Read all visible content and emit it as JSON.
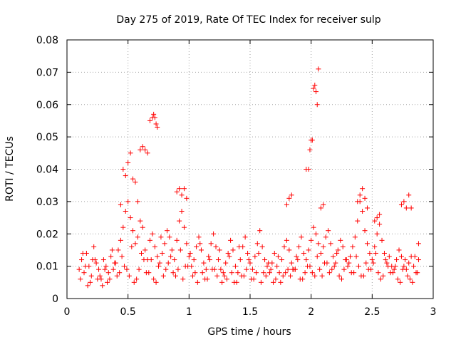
{
  "chart_data": {
    "type": "scatter",
    "title": "Day 275 of 2019, Rate Of TEC Index for receiver sulp",
    "xlabel": "GPS time / hours",
    "ylabel": "ROTI / TECUs",
    "xlim": [
      0,
      3
    ],
    "ylim": [
      0,
      0.08
    ],
    "x_ticks": [
      0,
      0.5,
      1,
      1.5,
      2,
      2.5,
      3
    ],
    "x_tick_labels": [
      "0",
      "0.5",
      "1",
      "1.5",
      "2",
      "2.5",
      "3"
    ],
    "y_ticks": [
      0,
      0.01,
      0.02,
      0.03,
      0.04,
      0.05,
      0.06,
      0.07,
      0.08
    ],
    "y_tick_labels": [
      "0",
      "0.01",
      "0.02",
      "0.03",
      "0.04",
      "0.05",
      "0.06",
      "0.07",
      "0.08"
    ],
    "grid": true,
    "marker": "plus",
    "color": "#ff0000",
    "series": [
      {
        "name": "ROTI",
        "x": [
          0.1,
          0.12,
          0.14,
          0.16,
          0.18,
          0.2,
          0.22,
          0.24,
          0.26,
          0.28,
          0.3,
          0.32,
          0.34,
          0.36,
          0.38,
          0.4,
          0.42,
          0.44,
          0.46,
          0.48,
          0.5,
          0.52,
          0.54,
          0.56,
          0.58,
          0.6,
          0.62,
          0.64,
          0.66,
          0.68,
          0.7,
          0.72,
          0.74,
          0.76,
          0.78,
          0.8,
          0.82,
          0.84,
          0.86,
          0.88,
          0.9,
          0.92,
          0.94,
          0.96,
          0.98,
          1.0,
          1.02,
          1.04,
          1.06,
          1.08,
          1.1,
          1.12,
          1.14,
          1.16,
          1.18,
          1.2,
          1.22,
          1.24,
          1.26,
          1.28,
          1.3,
          1.32,
          1.34,
          1.36,
          1.38,
          1.4,
          1.42,
          1.44,
          1.46,
          1.48,
          1.5,
          1.52,
          1.54,
          1.56,
          1.58,
          1.6,
          1.62,
          1.64,
          1.66,
          1.68,
          1.7,
          1.72,
          1.74,
          1.76,
          1.78,
          1.8,
          1.82,
          1.84,
          1.86,
          1.88,
          1.9,
          1.92,
          1.94,
          1.96,
          1.98,
          2.0,
          2.02,
          2.04,
          2.06,
          2.08,
          2.1,
          2.12,
          2.14,
          2.16,
          2.18,
          2.2,
          2.22,
          2.24,
          2.26,
          2.28,
          2.3,
          2.32,
          2.34,
          2.36,
          2.38,
          2.4,
          2.42,
          2.44,
          2.46,
          2.48,
          2.5,
          2.52,
          2.54,
          2.56,
          2.58,
          2.6,
          2.62,
          2.64,
          2.66,
          2.68,
          2.7,
          2.72,
          2.74,
          2.76,
          2.78,
          2.8,
          2.82,
          2.84,
          2.86,
          2.88,
          0.11,
          0.15,
          0.19,
          0.23,
          0.27,
          0.31,
          0.35,
          0.39,
          0.43,
          0.47,
          0.51,
          0.55,
          0.59,
          0.63,
          0.67,
          0.71,
          0.75,
          0.79,
          0.83,
          0.87,
          0.91,
          0.95,
          0.99,
          1.03,
          1.07,
          1.11,
          1.15,
          1.19,
          1.23,
          1.27,
          1.31,
          1.35,
          1.39,
          1.43,
          1.47,
          1.51,
          1.55,
          1.59,
          1.63,
          1.67,
          1.71,
          1.75,
          1.79,
          1.83,
          1.87,
          1.91,
          1.95,
          1.99,
          2.03,
          2.07,
          2.11,
          2.15,
          2.19,
          2.23,
          2.27,
          2.31,
          2.35,
          2.39,
          2.43,
          2.47,
          2.51,
          2.55,
          2.59,
          2.63,
          2.67,
          2.71,
          2.75,
          2.79,
          2.83,
          2.87,
          0.13,
          0.21,
          0.29,
          0.37,
          0.45,
          0.53,
          0.61,
          0.69,
          0.77,
          0.85,
          0.93,
          1.01,
          1.09,
          1.17,
          1.25,
          1.33,
          1.41,
          1.49,
          1.57,
          1.65,
          1.73,
          1.81,
          1.89,
          1.97,
          2.05,
          2.13,
          2.21,
          2.29,
          2.37,
          2.45,
          2.53,
          2.61,
          2.69,
          2.77,
          2.85,
          0.17,
          0.25,
          0.33,
          0.41,
          0.49,
          0.57,
          0.65,
          0.73,
          0.81,
          0.89,
          0.97,
          1.05,
          1.13,
          1.21,
          1.29,
          1.37,
          1.45,
          1.53,
          1.61,
          1.69,
          1.77,
          1.85,
          1.93,
          2.01,
          2.09,
          2.17,
          2.25,
          2.33,
          2.41,
          2.49,
          2.57,
          2.65,
          2.73,
          2.81,
          0.44,
          0.46,
          0.48,
          0.5,
          0.52,
          0.54,
          0.56,
          0.58,
          0.6,
          0.62,
          0.64,
          0.66,
          0.68,
          0.7,
          0.71,
          0.72,
          0.73,
          0.74,
          0.9,
          0.92,
          0.94,
          0.96,
          0.98,
          1.8,
          1.82,
          1.84,
          1.96,
          1.98,
          1.99,
          2.0,
          2.01,
          2.02,
          2.03,
          2.04,
          2.05,
          2.06,
          2.08,
          2.1,
          2.38,
          2.4,
          2.42,
          2.44,
          2.46,
          2.52,
          2.54,
          2.56,
          2.74,
          2.76,
          2.78,
          2.8,
          2.82,
          2.88
        ],
        "y": [
          0.009,
          0.012,
          0.008,
          0.014,
          0.01,
          0.007,
          0.016,
          0.011,
          0.009,
          0.006,
          0.012,
          0.01,
          0.008,
          0.013,
          0.009,
          0.011,
          0.015,
          0.018,
          0.022,
          0.027,
          0.03,
          0.025,
          0.021,
          0.017,
          0.019,
          0.024,
          0.022,
          0.015,
          0.012,
          0.018,
          0.02,
          0.016,
          0.013,
          0.011,
          0.014,
          0.017,
          0.021,
          0.019,
          0.015,
          0.012,
          0.018,
          0.024,
          0.027,
          0.022,
          0.017,
          0.013,
          0.01,
          0.012,
          0.016,
          0.019,
          0.015,
          0.011,
          0.009,
          0.013,
          0.017,
          0.02,
          0.016,
          0.012,
          0.009,
          0.008,
          0.011,
          0.014,
          0.018,
          0.015,
          0.01,
          0.008,
          0.012,
          0.016,
          0.019,
          0.014,
          0.011,
          0.009,
          0.013,
          0.017,
          0.021,
          0.016,
          0.012,
          0.01,
          0.008,
          0.011,
          0.014,
          0.01,
          0.008,
          0.012,
          0.016,
          0.018,
          0.015,
          0.011,
          0.009,
          0.013,
          0.016,
          0.019,
          0.014,
          0.012,
          0.015,
          0.018,
          0.022,
          0.02,
          0.017,
          0.014,
          0.016,
          0.019,
          0.021,
          0.017,
          0.013,
          0.011,
          0.015,
          0.018,
          0.016,
          0.012,
          0.01,
          0.013,
          0.016,
          0.019,
          0.024,
          0.03,
          0.027,
          0.021,
          0.017,
          0.014,
          0.012,
          0.016,
          0.02,
          0.023,
          0.018,
          0.014,
          0.011,
          0.013,
          0.01,
          0.009,
          0.012,
          0.015,
          0.013,
          0.01,
          0.009,
          0.011,
          0.013,
          0.01,
          0.008,
          0.012,
          0.006,
          0.01,
          0.005,
          0.012,
          0.007,
          0.009,
          0.006,
          0.011,
          0.008,
          0.01,
          0.007,
          0.005,
          0.009,
          0.012,
          0.008,
          0.006,
          0.01,
          0.007,
          0.011,
          0.008,
          0.009,
          0.006,
          0.01,
          0.007,
          0.005,
          0.008,
          0.006,
          0.009,
          0.007,
          0.005,
          0.006,
          0.008,
          0.005,
          0.007,
          0.009,
          0.006,
          0.008,
          0.005,
          0.007,
          0.009,
          0.006,
          0.005,
          0.008,
          0.007,
          0.009,
          0.006,
          0.008,
          0.01,
          0.007,
          0.009,
          0.011,
          0.008,
          0.01,
          0.007,
          0.009,
          0.011,
          0.008,
          0.01,
          0.007,
          0.009,
          0.011,
          0.008,
          0.007,
          0.01,
          0.008,
          0.006,
          0.009,
          0.007,
          0.005,
          0.008,
          0.014,
          0.012,
          0.004,
          0.015,
          0.013,
          0.016,
          0.014,
          0.012,
          0.019,
          0.013,
          0.015,
          0.014,
          0.017,
          0.012,
          0.015,
          0.013,
          0.016,
          0.012,
          0.014,
          0.011,
          0.013,
          0.009,
          0.012,
          0.01,
          0.013,
          0.011,
          0.014,
          0.012,
          0.013,
          0.011,
          0.014,
          0.012,
          0.01,
          0.012,
          0.013,
          0.004,
          0.006,
          0.005,
          0.007,
          0.009,
          0.006,
          0.008,
          0.005,
          0.009,
          0.007,
          0.01,
          0.008,
          0.006,
          0.009,
          0.007,
          0.005,
          0.007,
          0.006,
          0.008,
          0.005,
          0.007,
          0.009,
          0.006,
          0.008,
          0.007,
          0.009,
          0.006,
          0.008,
          0.007,
          0.009,
          0.006,
          0.008,
          0.005,
          0.006,
          0.029,
          0.04,
          0.038,
          0.042,
          0.045,
          0.037,
          0.036,
          0.03,
          0.046,
          0.047,
          0.046,
          0.045,
          0.055,
          0.056,
          0.057,
          0.056,
          0.054,
          0.053,
          0.033,
          0.034,
          0.032,
          0.034,
          0.031,
          0.029,
          0.031,
          0.032,
          0.04,
          0.04,
          0.046,
          0.049,
          0.049,
          0.065,
          0.066,
          0.064,
          0.06,
          0.071,
          0.028,
          0.029,
          0.03,
          0.032,
          0.034,
          0.031,
          0.028,
          0.024,
          0.025,
          0.026,
          0.029,
          0.03,
          0.028,
          0.032,
          0.028,
          0.017
        ]
      }
    ]
  }
}
